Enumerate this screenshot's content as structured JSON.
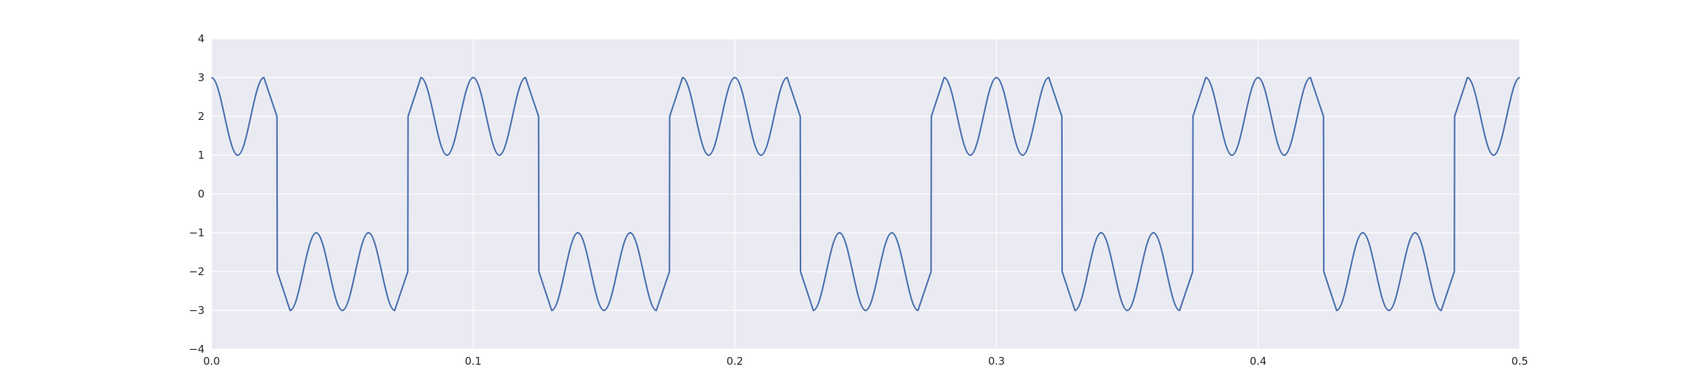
{
  "chart_data": {
    "type": "line",
    "title": "",
    "xlabel": "",
    "ylabel": "",
    "xlim": [
      0.0,
      0.5
    ],
    "ylim": [
      -4,
      4
    ],
    "grid": true,
    "legend": "none",
    "x_ticks": [
      0.0,
      0.1,
      0.2,
      0.3,
      0.4,
      0.5
    ],
    "x_tick_labels": [
      "0.0",
      "0.1",
      "0.2",
      "0.3",
      "0.4",
      "0.5"
    ],
    "y_ticks": [
      -4,
      -3,
      -2,
      -1,
      0,
      1,
      2,
      3,
      4
    ],
    "y_tick_labels": [
      "−4",
      "−3",
      "−2",
      "−1",
      "0",
      "1",
      "2",
      "3",
      "4"
    ],
    "series": [
      {
        "x": [
          0.0,
          0.01,
          0.02,
          0.025,
          0.0251,
          0.03,
          0.04,
          0.05,
          0.06,
          0.07,
          0.075,
          0.0751,
          0.08,
          0.09,
          0.1,
          0.11,
          0.12,
          0.125,
          0.1251,
          0.13,
          0.14,
          0.15,
          0.16,
          0.17,
          0.175,
          0.1751,
          0.18,
          0.19,
          0.2,
          0.21,
          0.22,
          0.225,
          0.2251,
          0.23,
          0.24,
          0.25,
          0.26,
          0.27,
          0.275,
          0.2751,
          0.28,
          0.29,
          0.3,
          0.31,
          0.32,
          0.325,
          0.3251,
          0.33,
          0.34,
          0.35,
          0.36,
          0.37,
          0.375,
          0.3751,
          0.38,
          0.39,
          0.4,
          0.41,
          0.42,
          0.425,
          0.4251,
          0.43,
          0.44,
          0.45,
          0.46,
          0.47,
          0.475,
          0.4751,
          0.48,
          0.49,
          0.5
        ],
        "y": [
          3,
          1,
          3,
          2,
          -2,
          -3,
          -1,
          -3,
          -1,
          -3,
          -2,
          2,
          3,
          1,
          3,
          1,
          3,
          2,
          -2,
          -3,
          -1,
          -3,
          -1,
          -3,
          -2,
          2,
          3,
          1,
          3,
          1,
          3,
          2,
          -2,
          -3,
          -1,
          -3,
          -1,
          -3,
          -2,
          2,
          3,
          1,
          3,
          1,
          3,
          2,
          -2,
          -3,
          -1,
          -3,
          -1,
          -3,
          -2,
          2,
          3,
          1,
          3,
          1,
          3,
          2,
          -2,
          -3,
          -1,
          -3,
          -1,
          -3,
          -2,
          2,
          3,
          1,
          3
        ],
        "color": "#4c72b0"
      }
    ],
    "colors": {
      "plot_background": "#eaeaf2",
      "grid": "#ffffff",
      "line": "#4c72b0"
    }
  }
}
